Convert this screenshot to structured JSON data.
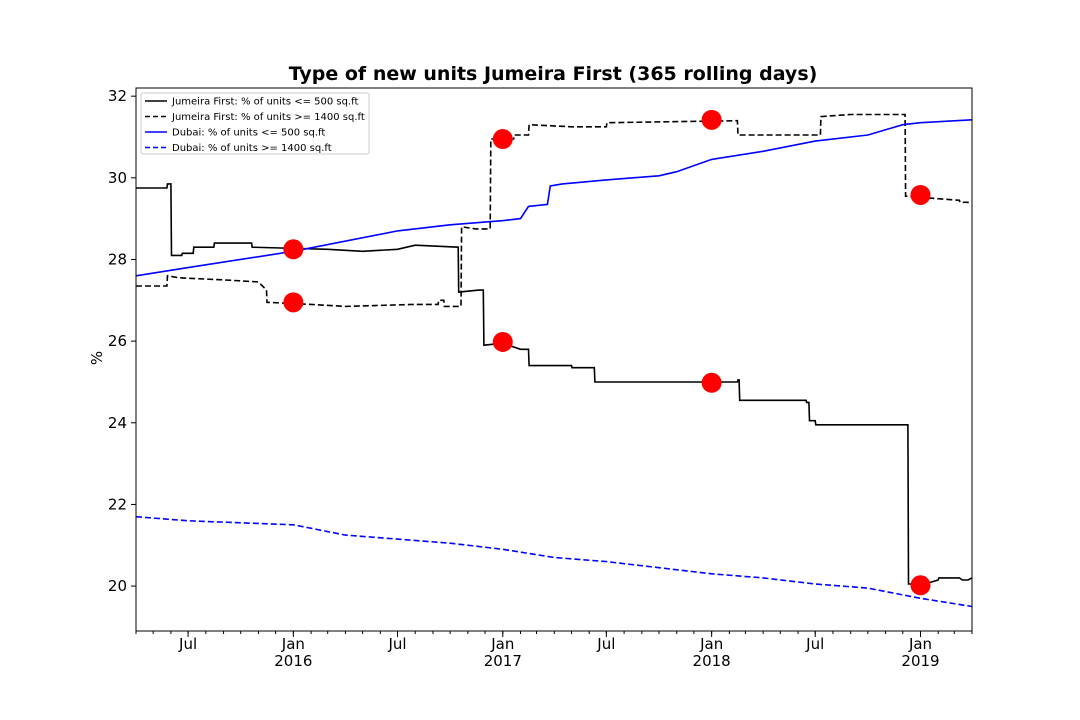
{
  "chart_data": {
    "type": "line",
    "title": "Type of new units Jumeira First (365 rolling days)",
    "xlabel": "",
    "ylabel": "%",
    "x_range": [
      "2015-04-01",
      "2019-04-01"
    ],
    "ylim": [
      18.9,
      32.2
    ],
    "y_ticks": [
      20,
      22,
      24,
      26,
      28,
      30,
      32
    ],
    "x_ticks": [
      {
        "date": "2015-07-01",
        "label": "Jul",
        "sublabel": ""
      },
      {
        "date": "2016-01-01",
        "label": "Jan",
        "sublabel": "2016"
      },
      {
        "date": "2016-07-01",
        "label": "Jul",
        "sublabel": ""
      },
      {
        "date": "2017-01-01",
        "label": "Jan",
        "sublabel": "2017"
      },
      {
        "date": "2017-07-01",
        "label": "Jul",
        "sublabel": ""
      },
      {
        "date": "2018-01-01",
        "label": "Jan",
        "sublabel": "2018"
      },
      {
        "date": "2018-07-01",
        "label": "Jul",
        "sublabel": ""
      },
      {
        "date": "2019-01-01",
        "label": "Jan",
        "sublabel": "2019"
      }
    ],
    "grid": false,
    "legend_position": "top-left",
    "series": [
      {
        "name": "Jumeira First: % of units <= 500 sq.ft",
        "color": "#000000",
        "style": "solid",
        "points": [
          [
            "2015-04-01",
            29.75
          ],
          [
            "2015-05-25",
            29.75
          ],
          [
            "2015-05-26",
            29.85
          ],
          [
            "2015-06-01",
            29.85
          ],
          [
            "2015-06-02",
            28.1
          ],
          [
            "2015-06-20",
            28.1
          ],
          [
            "2015-06-21",
            28.15
          ],
          [
            "2015-07-10",
            28.15
          ],
          [
            "2015-07-11",
            28.3
          ],
          [
            "2015-08-15",
            28.3
          ],
          [
            "2015-08-16",
            28.4
          ],
          [
            "2015-10-20",
            28.4
          ],
          [
            "2015-10-21",
            28.3
          ],
          [
            "2016-03-01",
            28.25
          ],
          [
            "2016-05-01",
            28.2
          ],
          [
            "2016-07-01",
            28.25
          ],
          [
            "2016-08-01",
            28.35
          ],
          [
            "2016-10-15",
            28.3
          ],
          [
            "2016-10-16",
            27.2
          ],
          [
            "2016-11-20",
            27.25
          ],
          [
            "2016-11-28",
            27.25
          ],
          [
            "2016-11-29",
            25.9
          ],
          [
            "2017-01-01",
            25.95
          ],
          [
            "2017-02-01",
            25.8
          ],
          [
            "2017-02-15",
            25.8
          ],
          [
            "2017-02-16",
            25.4
          ],
          [
            "2017-05-01",
            25.4
          ],
          [
            "2017-05-02",
            25.35
          ],
          [
            "2017-06-10",
            25.35
          ],
          [
            "2017-06-11",
            25.0
          ],
          [
            "2018-02-15",
            25.0
          ],
          [
            "2018-02-16",
            25.05
          ],
          [
            "2018-02-18",
            25.05
          ],
          [
            "2018-02-19",
            24.55
          ],
          [
            "2018-06-15",
            24.55
          ],
          [
            "2018-06-16",
            24.5
          ],
          [
            "2018-06-20",
            24.5
          ],
          [
            "2018-06-21",
            24.05
          ],
          [
            "2018-07-01",
            24.05
          ],
          [
            "2018-07-02",
            23.95
          ],
          [
            "2018-12-10",
            23.95
          ],
          [
            "2018-12-11",
            20.05
          ],
          [
            "2019-01-10",
            20.05
          ],
          [
            "2019-01-20",
            20.1
          ],
          [
            "2019-02-01",
            20.15
          ],
          [
            "2019-02-02",
            20.2
          ],
          [
            "2019-03-10",
            20.2
          ],
          [
            "2019-03-15",
            20.15
          ],
          [
            "2019-03-25",
            20.15
          ],
          [
            "2019-04-01",
            20.2
          ]
        ]
      },
      {
        "name": "Jumeira First: % of units >= 1400 sq.ft",
        "color": "#000000",
        "style": "dashed",
        "points": [
          [
            "2015-04-01",
            27.35
          ],
          [
            "2015-05-25",
            27.35
          ],
          [
            "2015-05-26",
            27.6
          ],
          [
            "2015-06-15",
            27.55
          ],
          [
            "2015-09-01",
            27.5
          ],
          [
            "2015-11-01",
            27.45
          ],
          [
            "2015-11-15",
            27.25
          ],
          [
            "2015-11-16",
            26.95
          ],
          [
            "2016-02-01",
            26.9
          ],
          [
            "2016-04-01",
            26.85
          ],
          [
            "2016-08-01",
            26.9
          ],
          [
            "2016-09-10",
            26.9
          ],
          [
            "2016-09-11",
            27.0
          ],
          [
            "2016-09-20",
            27.0
          ],
          [
            "2016-09-21",
            26.85
          ],
          [
            "2016-10-20",
            26.85
          ],
          [
            "2016-10-21",
            28.8
          ],
          [
            "2016-11-15",
            28.75
          ],
          [
            "2016-12-10",
            28.75
          ],
          [
            "2016-12-11",
            30.95
          ],
          [
            "2017-01-20",
            30.95
          ],
          [
            "2017-01-21",
            31.05
          ],
          [
            "2017-02-15",
            31.05
          ],
          [
            "2017-02-16",
            31.3
          ],
          [
            "2017-05-01",
            31.25
          ],
          [
            "2017-07-01",
            31.25
          ],
          [
            "2017-07-02",
            31.35
          ],
          [
            "2018-02-15",
            31.4
          ],
          [
            "2018-02-16",
            31.05
          ],
          [
            "2018-07-10",
            31.05
          ],
          [
            "2018-07-11",
            31.5
          ],
          [
            "2018-09-01",
            31.55
          ],
          [
            "2018-12-05",
            31.55
          ],
          [
            "2018-12-06",
            29.55
          ],
          [
            "2019-01-20",
            29.5
          ],
          [
            "2019-03-10",
            29.45
          ],
          [
            "2019-03-11",
            29.4
          ],
          [
            "2019-04-01",
            29.4
          ]
        ]
      },
      {
        "name": "Dubai: % of units <= 500 sq.ft",
        "color": "#0000ff",
        "style": "solid",
        "points": [
          [
            "2015-04-01",
            27.6
          ],
          [
            "2015-07-01",
            27.8
          ],
          [
            "2016-01-01",
            28.2
          ],
          [
            "2016-07-01",
            28.7
          ],
          [
            "2016-10-01",
            28.85
          ],
          [
            "2016-12-31",
            28.95
          ],
          [
            "2017-02-01",
            29.0
          ],
          [
            "2017-02-15",
            29.3
          ],
          [
            "2017-03-20",
            29.35
          ],
          [
            "2017-03-25",
            29.8
          ],
          [
            "2017-04-15",
            29.85
          ],
          [
            "2017-07-01",
            29.95
          ],
          [
            "2017-10-01",
            30.05
          ],
          [
            "2017-11-01",
            30.15
          ],
          [
            "2018-01-01",
            30.45
          ],
          [
            "2018-04-01",
            30.65
          ],
          [
            "2018-07-01",
            30.9
          ],
          [
            "2018-10-01",
            31.05
          ],
          [
            "2018-12-01",
            31.3
          ],
          [
            "2019-01-01",
            31.35
          ],
          [
            "2019-04-01",
            31.42
          ]
        ]
      },
      {
        "name": "Dubai: % of units >= 1400 sq.ft",
        "color": "#0000ff",
        "style": "dashed",
        "points": [
          [
            "2015-04-01",
            21.7
          ],
          [
            "2015-07-01",
            21.6
          ],
          [
            "2016-01-01",
            21.5
          ],
          [
            "2016-04-01",
            21.25
          ],
          [
            "2016-07-01",
            21.15
          ],
          [
            "2016-10-01",
            21.05
          ],
          [
            "2017-01-01",
            20.9
          ],
          [
            "2017-04-01",
            20.7
          ],
          [
            "2017-07-01",
            20.6
          ],
          [
            "2017-10-01",
            20.45
          ],
          [
            "2018-01-01",
            20.3
          ],
          [
            "2018-04-01",
            20.2
          ],
          [
            "2018-07-01",
            20.05
          ],
          [
            "2018-10-01",
            19.95
          ],
          [
            "2019-01-01",
            19.7
          ],
          [
            "2019-04-01",
            19.5
          ]
        ]
      }
    ],
    "markers": {
      "color": "#ff0000",
      "points": [
        [
          "2016-01-01",
          28.25
        ],
        [
          "2016-01-01",
          26.95
        ],
        [
          "2017-01-01",
          30.95
        ],
        [
          "2017-01-01",
          25.98
        ],
        [
          "2018-01-01",
          31.42
        ],
        [
          "2018-01-01",
          24.98
        ],
        [
          "2019-01-01",
          29.58
        ],
        [
          "2019-01-01",
          20.02
        ]
      ]
    }
  }
}
